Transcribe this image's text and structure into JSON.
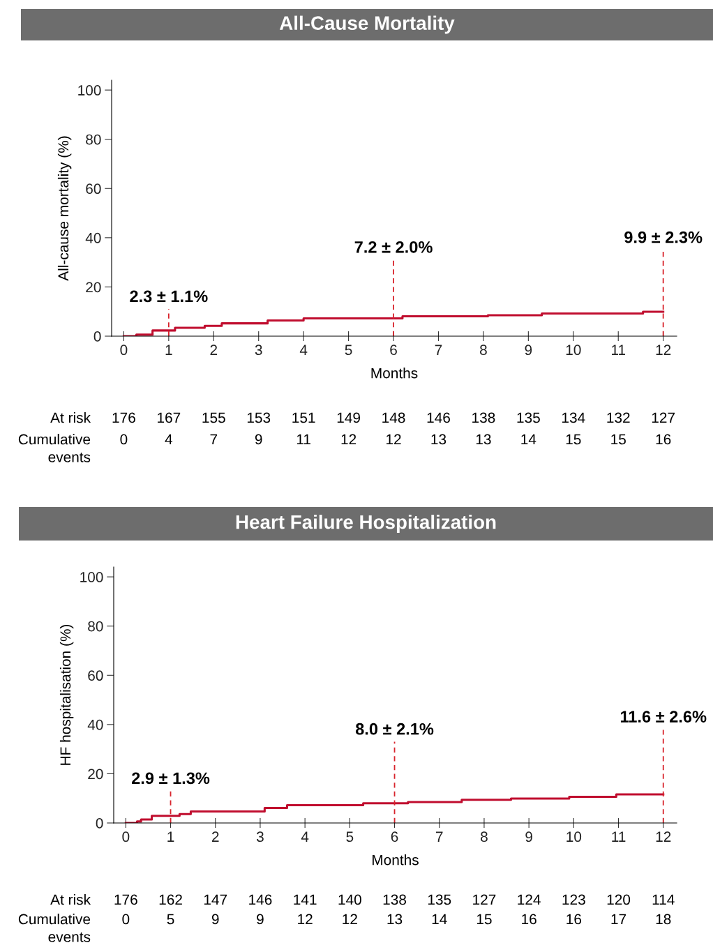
{
  "chart_data": [
    {
      "type": "step",
      "title": "All-Cause Mortality",
      "xlabel": "Months",
      "ylabel": "All-cause mortality (%)",
      "series": [
        {
          "color": "#c00d2e",
          "x": [
            0,
            0.28,
            0.64,
            1.14,
            1.8,
            2.18,
            3.2,
            4.0,
            6.2,
            8.1,
            9.3,
            11.55,
            12
          ],
          "values": [
            0,
            0.6,
            2.3,
            3.4,
            4.2,
            5.2,
            6.4,
            7.2,
            8.1,
            8.5,
            9.2,
            9.9,
            9.9
          ]
        }
      ],
      "xlim": [
        -0.27,
        12.3
      ],
      "ylim": [
        0,
        104
      ],
      "xticks": [
        0,
        1,
        2,
        3,
        4,
        5,
        6,
        7,
        8,
        9,
        10,
        11,
        12
      ],
      "yticks": [
        0,
        20,
        40,
        60,
        80,
        100
      ],
      "ref_lines": [
        {
          "axis": "x",
          "value": 1,
          "color": "#d8242c",
          "line_style": "dashed"
        },
        {
          "axis": "x",
          "value": 6,
          "color": "#d8242c",
          "line_style": "dashed"
        },
        {
          "axis": "x",
          "value": 12,
          "color": "#d8242c",
          "line_style": "dashed"
        }
      ],
      "annotations": [
        "2.3 ± 1.1%",
        "7.2 ± 2.0%",
        "9.9 ± 2.3%",
        "At risk",
        "176",
        "167",
        "155",
        "153",
        "151",
        "149",
        "148",
        "146",
        "138",
        "135",
        "134",
        "132",
        "127",
        "Cumulative\nevents",
        "0",
        "4",
        "7",
        "9",
        "11",
        "12",
        "12",
        "13",
        "13",
        "14",
        "15",
        "15",
        "16"
      ],
      "grid": false,
      "legend": false
    },
    {
      "type": "step",
      "title": "Heart Failure Hospitalization",
      "xlabel": "Months",
      "ylabel": "HF hospitalisation (%)",
      "series": [
        {
          "color": "#c00d2e",
          "x": [
            0,
            0.25,
            0.34,
            0.58,
            1.2,
            1.45,
            3.1,
            3.6,
            5.3,
            6.3,
            7.5,
            8.6,
            9.9,
            10.95,
            12
          ],
          "values": [
            0,
            0.6,
            1.4,
            2.9,
            3.6,
            4.7,
            6.1,
            7.2,
            8.0,
            8.5,
            9.4,
            9.9,
            10.6,
            11.6,
            11.6
          ]
        }
      ],
      "xlim": [
        -0.27,
        12.3
      ],
      "ylim": [
        0,
        104
      ],
      "xticks": [
        0,
        1,
        2,
        3,
        4,
        5,
        6,
        7,
        8,
        9,
        10,
        11,
        12
      ],
      "yticks": [
        0,
        20,
        40,
        60,
        80,
        100
      ],
      "ref_lines": [
        {
          "axis": "x",
          "value": 1,
          "color": "#d8242c",
          "line_style": "dashed"
        },
        {
          "axis": "x",
          "value": 6,
          "color": "#d8242c",
          "line_style": "dashed"
        },
        {
          "axis": "x",
          "value": 12,
          "color": "#d8242c",
          "line_style": "dashed"
        }
      ],
      "annotations": [
        "2.9 ± 1.3%",
        "8.0 ± 2.1%",
        "11.6 ± 2.6%",
        "At risk",
        "176",
        "162",
        "147",
        "146",
        "141",
        "140",
        "138",
        "135",
        "127",
        "124",
        "123",
        "120",
        "114",
        "Cumulative\nevents",
        "0",
        "5",
        "9",
        "9",
        "12",
        "12",
        "13",
        "14",
        "15",
        "16",
        "16",
        "17",
        "18"
      ],
      "grid": false,
      "legend": false
    }
  ]
}
